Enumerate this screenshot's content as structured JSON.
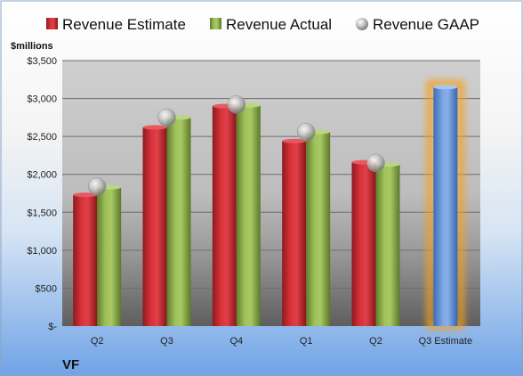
{
  "chart_data": {
    "type": "bar",
    "ylabel": "$millions",
    "company": "VF",
    "categories": [
      "Q2",
      "Q3",
      "Q4",
      "Q1",
      "Q2",
      "Q3 Estimate"
    ],
    "yticks": [
      "$-",
      "$500",
      "$1,000",
      "$1,500",
      "$2,000",
      "$2,500",
      "$3,000",
      "$3,500"
    ],
    "ylim": [
      0,
      3500
    ],
    "grid": true,
    "legend_position": "top",
    "series": [
      {
        "name": "Revenue Estimate",
        "color": "#c0262d",
        "values": [
          1730,
          2620,
          2900,
          2440,
          2160,
          null
        ]
      },
      {
        "name": "Revenue Actual",
        "color": "#8fb04c",
        "values": [
          1830,
          2750,
          2910,
          2560,
          2130,
          null
        ]
      },
      {
        "name": "Revenue GAAP",
        "color": "#b8b8b8",
        "values": [
          1840,
          2750,
          2920,
          2560,
          2150,
          null
        ]
      }
    ],
    "estimate": {
      "category_index": 5,
      "value": 3150,
      "color": "#5b8fd6",
      "glow": "#f5a020"
    }
  }
}
